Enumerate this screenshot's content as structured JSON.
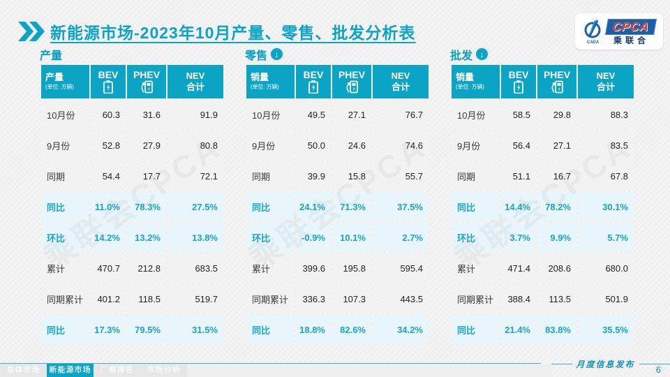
{
  "header": {
    "title_emphasis": "新能源市场",
    "title_rest": "-2023年10月产量、零售、批发分析表"
  },
  "logo": {
    "cpca": "CPCA",
    "org": "乘联合",
    "abbr": "CADA"
  },
  "watermark": "乘联会CPCA",
  "colors": {
    "teal": "#0ca4c4",
    "teal_text": "#17a6c7",
    "highlight_row_bg": "#e8f5fa",
    "row_bg": "#f3f3f3",
    "logo_blue": "#1b5fa8",
    "logo_red": "#d5332c"
  },
  "icons": {
    "down_arrow": "↓"
  },
  "chart_data": [
    {
      "type": "table",
      "section_title": "产量",
      "corner_label": "产量",
      "corner_unit": "(单位: 万辆)",
      "columns": {
        "c1": "BEV",
        "c2": "PHEV",
        "c3_l1": "NEV",
        "c3_l2": "合计"
      },
      "rows": [
        {
          "label": "10月份",
          "values": [
            "60.3",
            "31.6",
            "91.9"
          ],
          "highlight": false
        },
        {
          "label": "9月份",
          "values": [
            "52.8",
            "27.9",
            "80.8"
          ],
          "highlight": false
        },
        {
          "label": "同期",
          "values": [
            "54.4",
            "17.7",
            "72.1"
          ],
          "highlight": false
        },
        {
          "label": "同比",
          "values": [
            "11.0%",
            "78.3%",
            "27.5%"
          ],
          "highlight": true
        },
        {
          "label": "环比",
          "values": [
            "14.2%",
            "13.2%",
            "13.8%"
          ],
          "highlight": true
        },
        {
          "label": "累计",
          "values": [
            "470.7",
            "212.8",
            "683.5"
          ],
          "highlight": false
        },
        {
          "label": "同期累计",
          "values": [
            "401.2",
            "118.5",
            "519.7"
          ],
          "highlight": false
        },
        {
          "label": "同比",
          "values": [
            "17.3%",
            "79.5%",
            "31.5%"
          ],
          "highlight": true
        }
      ]
    },
    {
      "type": "table",
      "section_title": "零售",
      "corner_label": "销量",
      "corner_unit": "(单位: 万辆)",
      "columns": {
        "c1": "BEV",
        "c2": "PHEV",
        "c3_l1": "NEV",
        "c3_l2": "合计"
      },
      "rows": [
        {
          "label": "10月份",
          "values": [
            "49.5",
            "27.1",
            "76.7"
          ],
          "highlight": false
        },
        {
          "label": "9月份",
          "values": [
            "50.0",
            "24.6",
            "74.6"
          ],
          "highlight": false
        },
        {
          "label": "同期",
          "values": [
            "39.9",
            "15.8",
            "55.7"
          ],
          "highlight": false
        },
        {
          "label": "同比",
          "values": [
            "24.1%",
            "71.3%",
            "37.5%"
          ],
          "highlight": true
        },
        {
          "label": "环比",
          "values": [
            "-0.9%",
            "10.1%",
            "2.7%"
          ],
          "highlight": true
        },
        {
          "label": "累计",
          "values": [
            "399.6",
            "195.8",
            "595.4"
          ],
          "highlight": false
        },
        {
          "label": "同期累计",
          "values": [
            "336.3",
            "107.3",
            "443.5"
          ],
          "highlight": false
        },
        {
          "label": "同比",
          "values": [
            "18.8%",
            "82.6%",
            "34.2%"
          ],
          "highlight": true
        }
      ]
    },
    {
      "type": "table",
      "section_title": "批发",
      "corner_label": "销量",
      "corner_unit": "(单位: 万辆)",
      "columns": {
        "c1": "BEV",
        "c2": "PHEV",
        "c3_l1": "NEV",
        "c3_l2": "合计"
      },
      "rows": [
        {
          "label": "10月份",
          "values": [
            "58.5",
            "29.8",
            "88.3"
          ],
          "highlight": false
        },
        {
          "label": "9月份",
          "values": [
            "56.4",
            "27.1",
            "83.5"
          ],
          "highlight": false
        },
        {
          "label": "同期",
          "values": [
            "51.1",
            "16.7",
            "67.8"
          ],
          "highlight": false
        },
        {
          "label": "同比",
          "values": [
            "14.4%",
            "78.2%",
            "30.1%"
          ],
          "highlight": true
        },
        {
          "label": "环比",
          "values": [
            "3.7%",
            "9.9%",
            "5.7%"
          ],
          "highlight": true
        },
        {
          "label": "累计",
          "values": [
            "471.4",
            "208.6",
            "680.0"
          ],
          "highlight": false
        },
        {
          "label": "同期累计",
          "values": [
            "388.4",
            "113.5",
            "501.9"
          ],
          "highlight": false
        },
        {
          "label": "同比",
          "values": [
            "21.4%",
            "83.8%",
            "35.5%"
          ],
          "highlight": true
        }
      ]
    }
  ],
  "footer": {
    "tabs": [
      {
        "label": "总体市场",
        "active": false
      },
      {
        "label": "新能源市场",
        "active": true
      },
      {
        "label": "厂商排名",
        "active": false
      },
      {
        "label": "市场分析",
        "active": false
      }
    ],
    "publish_label": "月度信息发布",
    "page_number": "6"
  }
}
